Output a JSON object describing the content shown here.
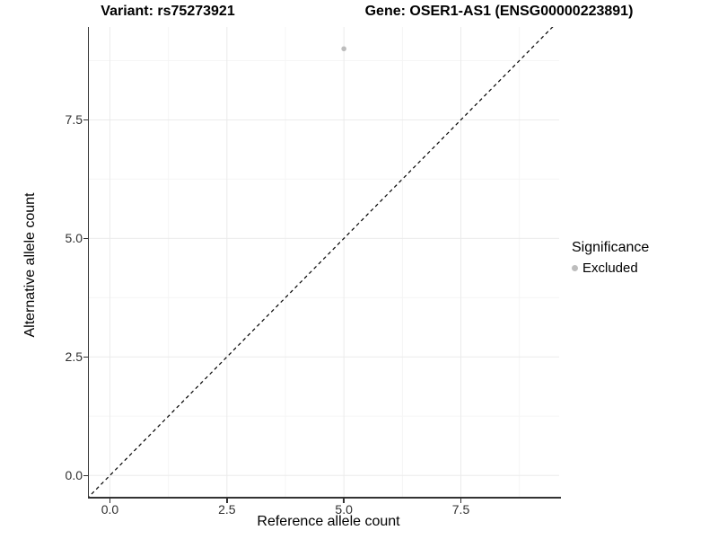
{
  "titles": {
    "variant": "Variant: rs75273921",
    "gene": "Gene: OSER1-AS1 (ENSG00000223891)"
  },
  "axes": {
    "x": {
      "label": "Reference allele count",
      "tick_labels": [
        "0.0",
        "2.5",
        "5.0",
        "7.5"
      ]
    },
    "y": {
      "label": "Alternative allele count",
      "tick_labels": [
        "0.0",
        "2.5",
        "5.0",
        "7.5"
      ]
    }
  },
  "legend": {
    "title": "Significance",
    "items": [
      {
        "label": "Excluded",
        "color": "#bdbdbd"
      }
    ]
  },
  "colors": {
    "background": "#ffffff",
    "axis_line": "#333333",
    "grid_major": "#ebebeb",
    "grid_minor": "#f5f5f5",
    "reference_line": "#000000",
    "point_excluded": "#bdbdbd",
    "tick_text": "#303030"
  },
  "chart_data": {
    "type": "scatter",
    "title": "Variant: rs75273921 — Gene: OSER1-AS1 (ENSG00000223891)",
    "xlabel": "Reference allele count",
    "ylabel": "Alternative allele count",
    "xlim": [
      -0.45,
      9.6
    ],
    "ylim": [
      -0.45,
      9.46
    ],
    "x_major_ticks": [
      0,
      2.5,
      5,
      7.5
    ],
    "y_major_ticks": [
      0,
      2.5,
      5,
      7.5
    ],
    "x_minor_ticks": [
      1.25,
      3.75,
      6.25,
      8.75
    ],
    "y_minor_ticks": [
      1.25,
      3.75,
      6.25,
      8.75
    ],
    "grid": true,
    "legend_position": "right",
    "series": [
      {
        "name": "Excluded",
        "color": "#bdbdbd",
        "point_radius": 2.8,
        "points": [
          {
            "x": 5.0,
            "y": 9.0
          }
        ]
      }
    ],
    "reference_line": {
      "type": "identity",
      "slope": 1,
      "intercept": 0,
      "style": "dashed"
    }
  }
}
